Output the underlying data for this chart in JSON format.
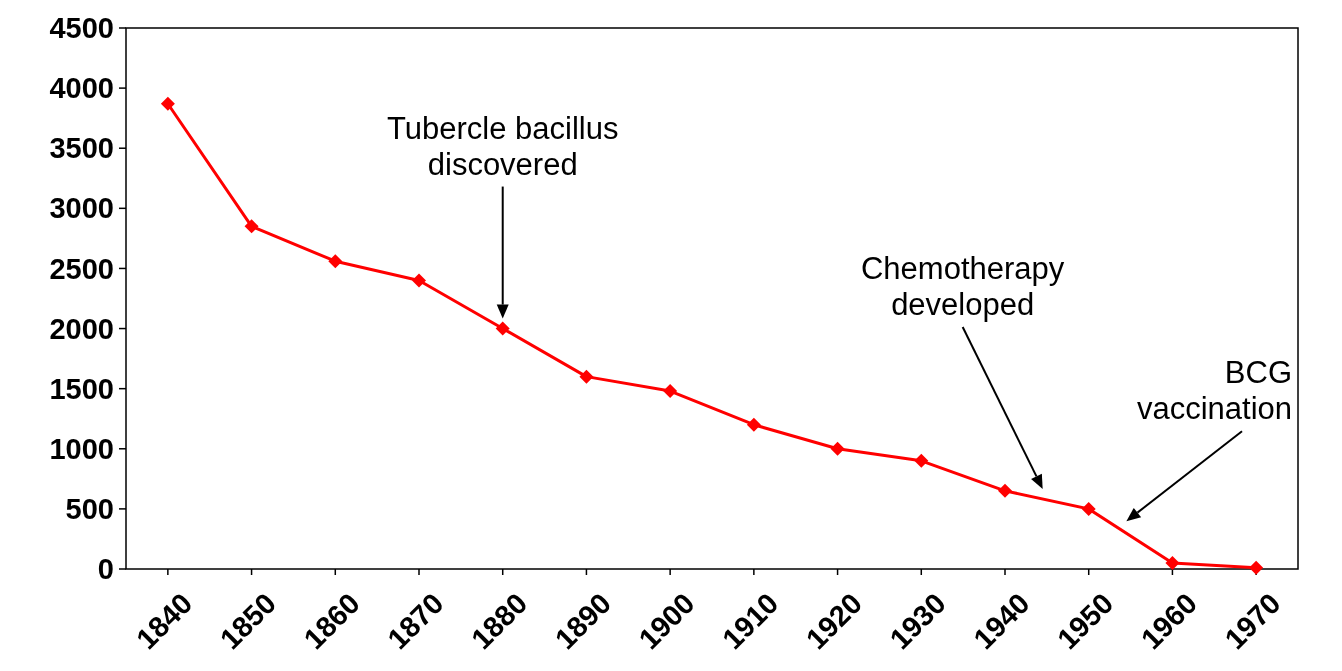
{
  "chart_data": {
    "type": "line",
    "categories": [
      "1840",
      "1850",
      "1860",
      "1870",
      "1880",
      "1890",
      "1900",
      "1910",
      "1920",
      "1930",
      "1940",
      "1950",
      "1960",
      "1970"
    ],
    "series": [
      {
        "color": "#ff0000",
        "values": [
          3870,
          2850,
          2560,
          2400,
          2000,
          1600,
          1480,
          1200,
          1000,
          900,
          650,
          500,
          50,
          10
        ]
      }
    ],
    "ylim": [
      0,
      4500
    ],
    "yticks": [
      0,
      500,
      1000,
      1500,
      2000,
      2500,
      3000,
      3500,
      4000,
      4500
    ],
    "grid": false,
    "marker": "diamond",
    "line_style": "solid",
    "annotations": [
      "Tubercle bacillus\ndiscovered",
      "Chemotherapy\ndeveloped",
      "BCG\nvaccination"
    ]
  }
}
